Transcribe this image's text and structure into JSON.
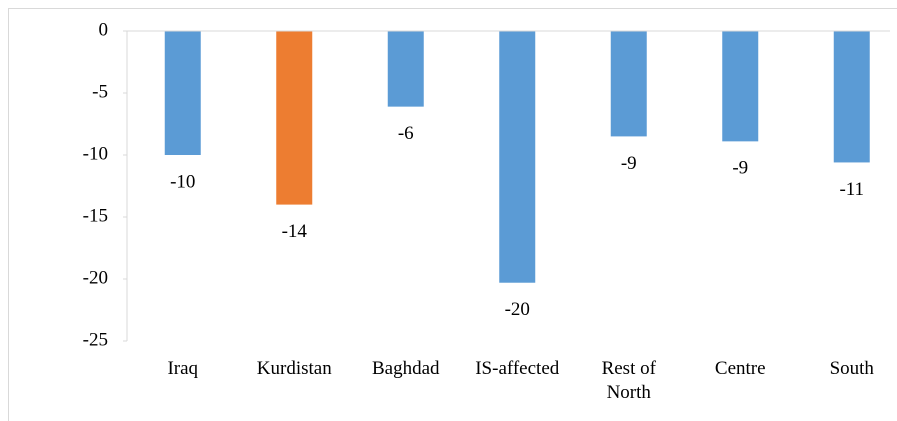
{
  "chart_data": {
    "type": "bar",
    "categories": [
      "Iraq",
      "Kurdistan",
      "Baghdad",
      "IS-affected",
      "Rest of North",
      "Centre",
      "South"
    ],
    "values": [
      -10,
      -14,
      -6.1,
      -20.3,
      -8.5,
      -8.9,
      -10.6
    ],
    "value_labels": [
      "-10",
      "-14",
      "-6",
      "-20",
      "-9",
      "-9",
      "-11"
    ],
    "colors": [
      "#5b9bd5",
      "#ed7d31",
      "#5b9bd5",
      "#5b9bd5",
      "#5b9bd5",
      "#5b9bd5",
      "#5b9bd5"
    ],
    "ylim": [
      -25,
      0
    ],
    "yticks": [
      0,
      -5,
      -10,
      -15,
      -20,
      -25
    ],
    "grid": false
  }
}
